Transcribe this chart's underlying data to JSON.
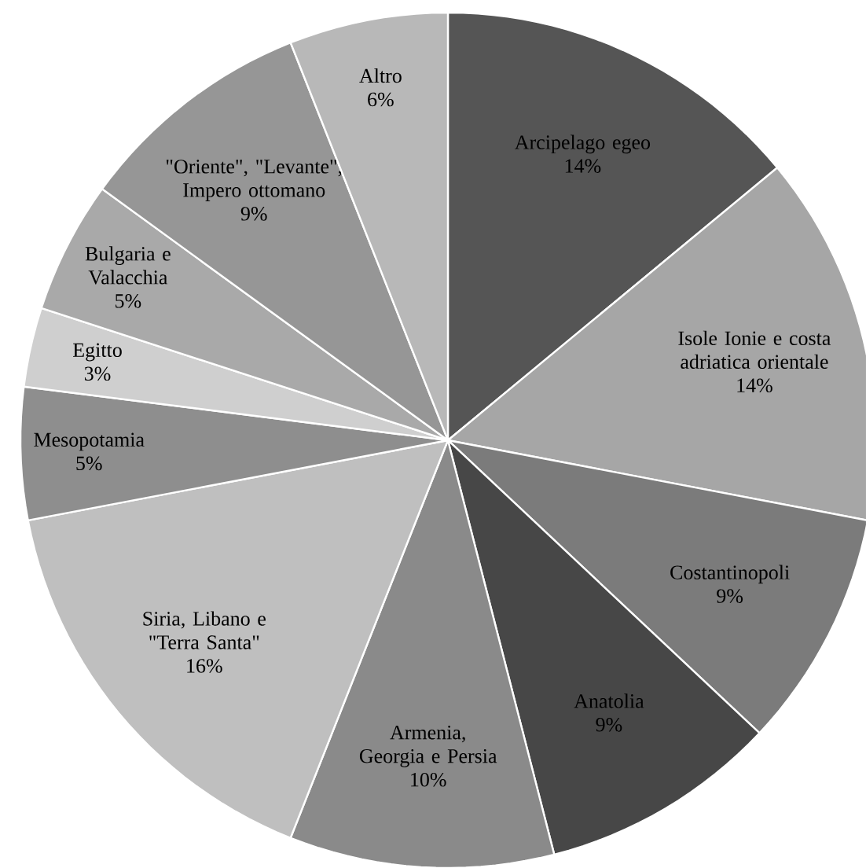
{
  "chart_data": {
    "type": "pie",
    "categories": [
      "Arcipelago egeo",
      "Isole Ionie e costa adriatica orientale",
      "Costantinopoli",
      "Anatolia",
      "Armenia, Georgia e Persia",
      "Siria, Libano e \"Terra Santa\"",
      "Mesopotamia",
      "Egitto",
      "Bulgaria e Valacchia",
      "\"Oriente\", \"Levante\", Impero ottomano",
      "Altro"
    ],
    "values": [
      14,
      14,
      9,
      9,
      10,
      16,
      5,
      3,
      5,
      9,
      6
    ],
    "value_labels": [
      "14%",
      "14%",
      "9%",
      "9%",
      "10%",
      "16%",
      "5%",
      "3%",
      "5%",
      "9%",
      "6%"
    ],
    "colors": [
      "#555555",
      "#a6a6a6",
      "#7b7b7b",
      "#474747",
      "#8a8a8a",
      "#bfbfbf",
      "#8e8e8e",
      "#cfcfcf",
      "#a9a9a9",
      "#969696",
      "#b8b8b8"
    ]
  }
}
